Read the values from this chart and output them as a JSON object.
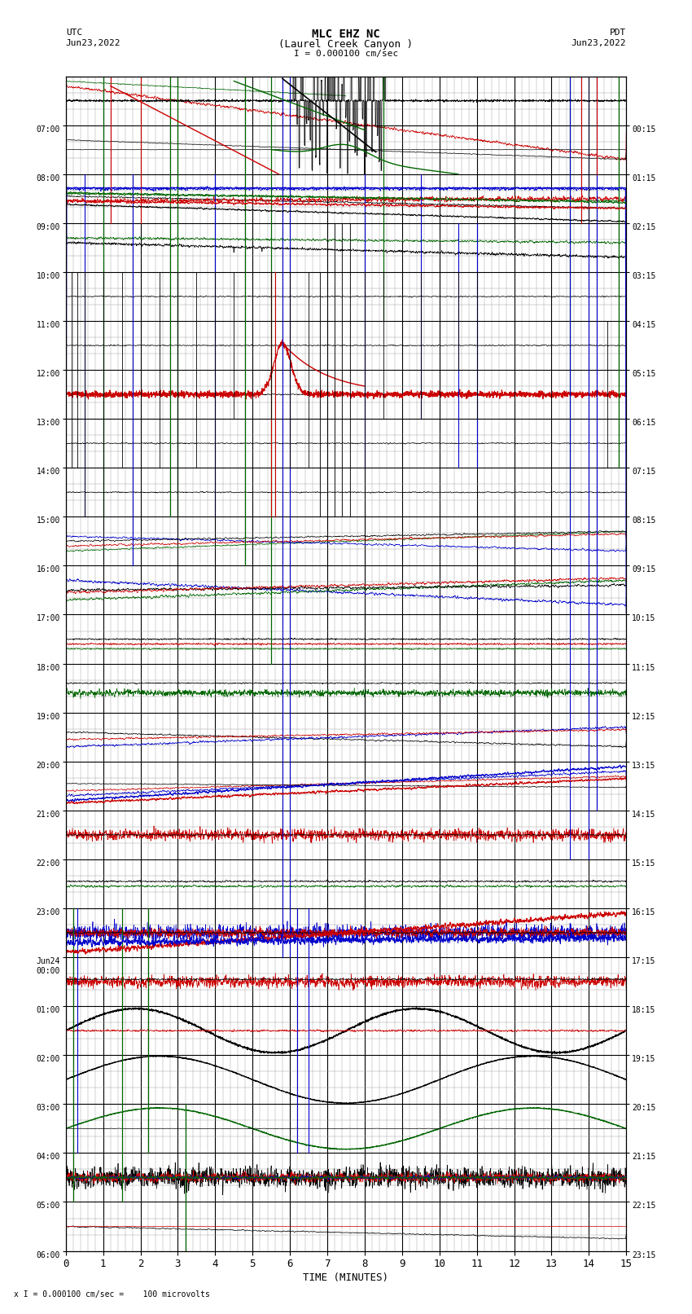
{
  "title_line1": "MLC EHZ NC",
  "title_line2": "(Laurel Creek Canyon )",
  "scale_label": "I = 0.000100 cm/sec",
  "bottom_label": "x I = 0.000100 cm/sec =    100 microvolts",
  "xlabel": "TIME (MINUTES)",
  "left_label_utc": "UTC",
  "left_label_date": "Jun23,2022",
  "right_label_pdt": "PDT",
  "right_label_date": "Jun23,2022",
  "left_times": [
    "07:00",
    "08:00",
    "09:00",
    "10:00",
    "11:00",
    "12:00",
    "13:00",
    "14:00",
    "15:00",
    "16:00",
    "17:00",
    "18:00",
    "19:00",
    "20:00",
    "21:00",
    "22:00",
    "23:00",
    "Jun24\n00:00",
    "01:00",
    "02:00",
    "03:00",
    "04:00",
    "05:00",
    "06:00"
  ],
  "right_times": [
    "00:15",
    "01:15",
    "02:15",
    "03:15",
    "04:15",
    "05:15",
    "06:15",
    "07:15",
    "08:15",
    "09:15",
    "10:15",
    "11:15",
    "12:15",
    "13:15",
    "14:15",
    "15:15",
    "16:15",
    "17:15",
    "18:15",
    "19:15",
    "20:15",
    "21:15",
    "22:15",
    "23:15"
  ],
  "num_rows": 24,
  "xmin": 0,
  "xmax": 15,
  "bg_color": "#ffffff",
  "grid_major_color": "#000000",
  "grid_minor_color": "#999999",
  "colors": {
    "black": "#000000",
    "red": "#cc0000",
    "blue": "#0000cc",
    "green": "#006600"
  },
  "seed": 42
}
